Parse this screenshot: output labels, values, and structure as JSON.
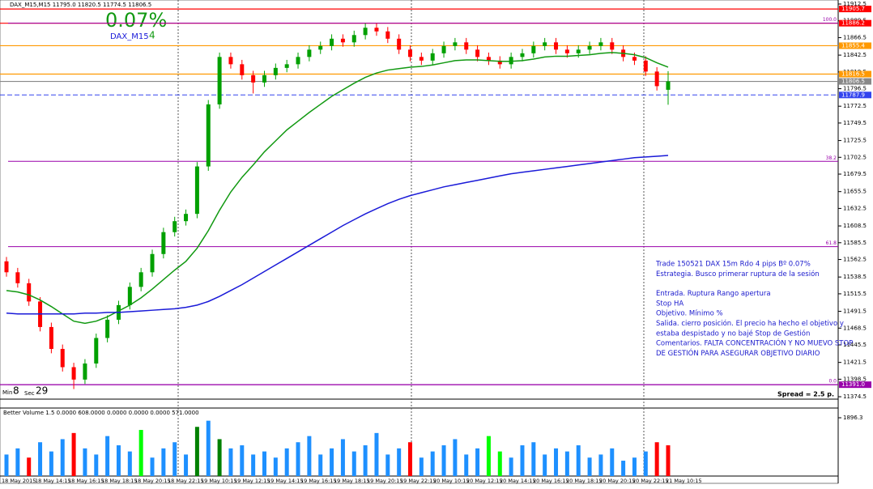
{
  "chart_data": {
    "type": "candlestick",
    "symbol_line": "DAX_M15,M15 11795.0 11820.5 11774.5 11806.5",
    "result": "0.07%",
    "symbol": "DAX_M15",
    "pips": "4",
    "timer": {
      "min_label": "Min",
      "min": "8",
      "sec_label": "Sec",
      "sec": "29"
    },
    "ylim": [
      11371.2,
      11915.8
    ],
    "yticks": [
      11912.5,
      11889.5,
      11866.5,
      11842.5,
      11819.5,
      11796.5,
      11772.5,
      11749.5,
      11725.5,
      11702.5,
      11679.5,
      11655.5,
      11632.5,
      11608.5,
      11585.5,
      11562.5,
      11538.5,
      11515.5,
      11491.5,
      11468.5,
      11445.5,
      11421.5,
      11398.5,
      11374.5
    ],
    "x_labels": [
      "18 May 2015",
      "18 May 14:15",
      "18 May 16:15",
      "18 May 18:15",
      "18 May 20:15",
      "18 May 22:15",
      "19 May 10:15",
      "19 May 12:15",
      "19 May 14:15",
      "19 May 16:15",
      "19 May 18:15",
      "19 May 20:15",
      "19 May 22:15",
      "20 May 10:15",
      "20 May 12:15",
      "20 May 14:15",
      "20 May 16:15",
      "20 May 18:15",
      "20 May 20:15",
      "20 May 22:15",
      "21 May 10:15"
    ],
    "bull_color": "#00a000",
    "bear_color": "#ff0000",
    "candles": [
      [
        11560,
        11566,
        11539,
        11545
      ],
      [
        11545,
        11551,
        11524,
        11530
      ],
      [
        11530,
        11536,
        11499,
        11505
      ],
      [
        11505,
        11511,
        11464,
        11470
      ],
      [
        11470,
        11476,
        11434,
        11440
      ],
      [
        11440,
        11446,
        11409,
        11415
      ],
      [
        11415,
        11421,
        11385,
        11398
      ],
      [
        11398,
        11426,
        11392,
        11420
      ],
      [
        11420,
        11461,
        11414,
        11455
      ],
      [
        11455,
        11486,
        11449,
        11480
      ],
      [
        11480,
        11506,
        11474,
        11500
      ],
      [
        11500,
        11531,
        11494,
        11525
      ],
      [
        11525,
        11551,
        11519,
        11545
      ],
      [
        11545,
        11576,
        11539,
        11570
      ],
      [
        11570,
        11606,
        11564,
        11600
      ],
      [
        11600,
        11621,
        11594,
        11615
      ],
      [
        11615,
        11631,
        11609,
        11625
      ],
      [
        11625,
        11696,
        11619,
        11690
      ],
      [
        11690,
        11781,
        11684,
        11775
      ],
      [
        11775,
        11846,
        11769,
        11840
      ],
      [
        11840,
        11846,
        11824,
        11830
      ],
      [
        11830,
        11836,
        11809,
        11815
      ],
      [
        11815,
        11821,
        11790,
        11805
      ],
      [
        11805,
        11821,
        11799,
        11815
      ],
      [
        11815,
        11831,
        11809,
        11825
      ],
      [
        11825,
        11836,
        11819,
        11830
      ],
      [
        11830,
        11846,
        11824,
        11840
      ],
      [
        11840,
        11856,
        11834,
        11850
      ],
      [
        11850,
        11861,
        11844,
        11855
      ],
      [
        11855,
        11871,
        11849,
        11865
      ],
      [
        11865,
        11871,
        11854,
        11860
      ],
      [
        11860,
        11876,
        11854,
        11870
      ],
      [
        11870,
        11886,
        11864,
        11880
      ],
      [
        11880,
        11886,
        11869,
        11875
      ],
      [
        11875,
        11881,
        11859,
        11865
      ],
      [
        11865,
        11871,
        11844,
        11850
      ],
      [
        11850,
        11856,
        11834,
        11840
      ],
      [
        11840,
        11846,
        11829,
        11835
      ],
      [
        11835,
        11851,
        11829,
        11845
      ],
      [
        11845,
        11861,
        11839,
        11855
      ],
      [
        11855,
        11866,
        11849,
        11860
      ],
      [
        11860,
        11866,
        11844,
        11850
      ],
      [
        11850,
        11856,
        11834,
        11840
      ],
      [
        11840,
        11846,
        11829,
        11835
      ],
      [
        11835,
        11841,
        11824,
        11830
      ],
      [
        11830,
        11846,
        11824,
        11840
      ],
      [
        11840,
        11851,
        11834,
        11845
      ],
      [
        11845,
        11861,
        11839,
        11855
      ],
      [
        11855,
        11866,
        11849,
        11860
      ],
      [
        11860,
        11866,
        11844,
        11850
      ],
      [
        11850,
        11856,
        11839,
        11845
      ],
      [
        11845,
        11856,
        11839,
        11850
      ],
      [
        11850,
        11861,
        11844,
        11855
      ],
      [
        11855,
        11866,
        11849,
        11860
      ],
      [
        11860,
        11866,
        11844,
        11850
      ],
      [
        11850,
        11856,
        11834,
        11840
      ],
      [
        11840,
        11846,
        11829,
        11835
      ],
      [
        11835,
        11841,
        11814,
        11820
      ],
      [
        11820,
        11826,
        11794,
        11800
      ],
      [
        11795,
        11820.5,
        11774.5,
        11806.5
      ]
    ],
    "series": [
      {
        "color": "#119911",
        "values": [
          11520,
          11518,
          11514,
          11507,
          11498,
          11488,
          11478,
          11475,
          11478,
          11484,
          11492,
          11500,
          11510,
          11522,
          11535,
          11548,
          11560,
          11578,
          11602,
          11630,
          11655,
          11675,
          11692,
          11710,
          11725,
          11740,
          11752,
          11764,
          11775,
          11786,
          11795,
          11804,
          11812,
          11818,
          11822,
          11824,
          11826,
          11827,
          11829,
          11832,
          11835,
          11836,
          11836,
          11835,
          11834,
          11834,
          11835,
          11837,
          11840,
          11841,
          11841,
          11842,
          11843,
          11845,
          11846,
          11845,
          11843,
          11839,
          11832,
          11826
        ]
      },
      {
        "color": "#1a1ad8",
        "values": [
          11489,
          11488,
          11488,
          11488,
          11488,
          11488,
          11488,
          11489,
          11489,
          11490,
          11490,
          11491,
          11492,
          11493,
          11494,
          11495,
          11497,
          11500,
          11505,
          11512,
          11520,
          11528,
          11537,
          11546,
          11555,
          11564,
          11573,
          11582,
          11591,
          11600,
          11609,
          11617,
          11625,
          11632,
          11639,
          11645,
          11650,
          11654,
          11658,
          11662,
          11665,
          11668,
          11671,
          11674,
          11677,
          11680,
          11682,
          11684,
          11686,
          11688,
          11690,
          11692,
          11694,
          11696,
          11698,
          11700,
          11702,
          11703,
          11704,
          11705
        ]
      }
    ],
    "levels": [
      {
        "value": 11905.7,
        "label": "11905.7",
        "color": "#ff0000"
      },
      {
        "value": 11886.2,
        "label": "11886.2",
        "color": "#ff0000"
      },
      {
        "value": 11855.4,
        "label": "11855.4",
        "color": "#ff9900"
      },
      {
        "value": 11816.5,
        "label": "11816.5",
        "color": "#ff9900"
      },
      {
        "value": 11806.5,
        "label": "11806.5",
        "color": "#888888"
      },
      {
        "value": 11787.9,
        "label": "11787.9",
        "color": "#3344ee"
      },
      {
        "value": 11391.0,
        "label": "11391.0",
        "color": "#9900aa"
      }
    ],
    "fib": [
      {
        "value": 11886.2,
        "label": "100.0"
      },
      {
        "value": 11697.0,
        "label": "38.2"
      },
      {
        "value": 11580.2,
        "label": "61.8"
      },
      {
        "value": 11391.0,
        "label": "0.0"
      }
    ],
    "notes": [
      "Trade 150521 DAX 15m Rdo 4 pips Bº 0.07%",
      "Estrategia. Busco primerar ruptura de la sesión",
      "Entrada. Ruptura Rango apertura",
      "Stop HA",
      "Objetivo. Mínimo %",
      "Salida. cierro posición. El precio ha hecho el objetivo y",
      "estaba despistado y no bajé Stop de Gestión",
      "Comentarios. FALTA CONCENTRACIÓN Y NO MUEVO STOP",
      "DE GESTIÓN PARA ASEGURAR OBJETIVO DIARIO"
    ],
    "spread": "Spread = 2.5 p.",
    "volume": {
      "title": "Better Volume 1.5 0.0000 608.0000 0.0000 0.0000 0.0000 571.0000",
      "ylim": [
        0,
        1896.3
      ],
      "yticks": [
        1896.3
      ],
      "values": [
        700,
        900,
        600,
        1100,
        800,
        1200,
        1400,
        900,
        700,
        1300,
        1000,
        800,
        1500,
        600,
        900,
        1100,
        700,
        1600,
        1800,
        1200,
        900,
        1000,
        700,
        800,
        600,
        900,
        1100,
        1300,
        700,
        900,
        1200,
        800,
        1000,
        1400,
        700,
        900,
        1100,
        600,
        800,
        1000,
        1200,
        700,
        900,
        1300,
        800,
        600,
        1000,
        1100,
        700,
        900,
        800,
        1000,
        600,
        700,
        900,
        500,
        600,
        800,
        1100,
        1000
      ],
      "colors": [
        "#1e90ff",
        "#1e90ff",
        "#ff0000",
        "#1e90ff",
        "#1e90ff",
        "#1e90ff",
        "#ff0000",
        "#1e90ff",
        "#1e90ff",
        "#1e90ff",
        "#1e90ff",
        "#1e90ff",
        "#00ff00",
        "#1e90ff",
        "#1e90ff",
        "#1e90ff",
        "#1e90ff",
        "#008000",
        "#1e90ff",
        "#008000",
        "#1e90ff",
        "#1e90ff",
        "#1e90ff",
        "#1e90ff",
        "#1e90ff",
        "#1e90ff",
        "#1e90ff",
        "#1e90ff",
        "#1e90ff",
        "#1e90ff",
        "#1e90ff",
        "#1e90ff",
        "#1e90ff",
        "#1e90ff",
        "#1e90ff",
        "#1e90ff",
        "#ff0000",
        "#1e90ff",
        "#1e90ff",
        "#1e90ff",
        "#1e90ff",
        "#1e90ff",
        "#1e90ff",
        "#00ff00",
        "#00ff00",
        "#1e90ff",
        "#1e90ff",
        "#1e90ff",
        "#1e90ff",
        "#1e90ff",
        "#1e90ff",
        "#1e90ff",
        "#1e90ff",
        "#1e90ff",
        "#1e90ff",
        "#1e90ff",
        "#1e90ff",
        "#1e90ff",
        "#ff0000",
        "#ff0000"
      ]
    }
  }
}
